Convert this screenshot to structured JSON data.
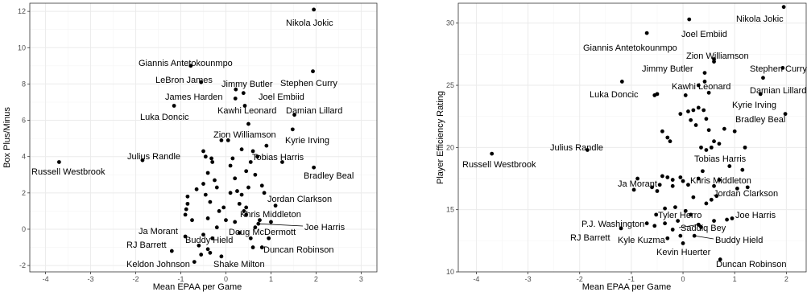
{
  "colors": {
    "panel_border": "#333333",
    "grid_major": "#ebebeb",
    "grid_minor": "#f5f5f5",
    "point": "#000000",
    "leader": "#000000"
  },
  "chart_data": [
    {
      "type": "scatter",
      "xlabel": "Mean EPAA per Game",
      "ylabel": "Box Plus/Minus",
      "xlim": [
        -4.35,
        3.35
      ],
      "ylim": [
        -2.35,
        12.45
      ],
      "xticks": [
        -4,
        -3,
        -2,
        -1,
        0,
        1,
        2,
        3
      ],
      "yticks": [
        -2,
        0,
        2,
        4,
        6,
        8,
        10,
        12
      ],
      "grid": true,
      "labeled": [
        {
          "name": "Nikola Jokic",
          "x": 1.95,
          "y": 12.1
        },
        {
          "name": "Giannis Antetokounmpo",
          "x": -0.78,
          "y": 9.0
        },
        {
          "name": "LeBron James",
          "x": -0.55,
          "y": 8.1
        },
        {
          "name": "Stephen Curry",
          "x": 1.93,
          "y": 8.7
        },
        {
          "name": "Jimmy Butler",
          "x": 0.22,
          "y": 7.7
        },
        {
          "name": "James Harden",
          "x": 0.21,
          "y": 7.2
        },
        {
          "name": "Joel Embiid",
          "x": 0.39,
          "y": 7.5
        },
        {
          "name": "Damian Lillard",
          "x": 1.52,
          "y": 6.3
        },
        {
          "name": "Kawhi Leonard",
          "x": 0.42,
          "y": 6.8
        },
        {
          "name": "Luka Doncic",
          "x": -1.15,
          "y": 6.8
        },
        {
          "name": "Zion Williamson",
          "x": 0.5,
          "y": 5.8
        },
        {
          "name": "Kyrie Irving",
          "x": 1.48,
          "y": 5.5
        },
        {
          "name": "Tobias Harris",
          "x": 0.35,
          "y": 4.4
        },
        {
          "name": "Julius Randle",
          "x": -1.85,
          "y": 3.8
        },
        {
          "name": "Russell Westbrook",
          "x": -3.7,
          "y": 3.7
        },
        {
          "name": "Bradley Beal",
          "x": 1.95,
          "y": 3.4
        },
        {
          "name": "Jordan Clarkson",
          "x": 1.1,
          "y": 1.3
        },
        {
          "name": "Khris Middleton",
          "x": 0.45,
          "y": 1.2
        },
        {
          "name": "Joe Harris",
          "x": 0.72,
          "y": 0.3
        },
        {
          "name": "Doug McDermott",
          "x": 0.65,
          "y": 0.1
        },
        {
          "name": "Ja Morant",
          "x": -0.9,
          "y": -0.4
        },
        {
          "name": "Buddy Hield",
          "x": -0.3,
          "y": -0.5
        },
        {
          "name": "RJ Barrett",
          "x": -1.2,
          "y": -1.2
        },
        {
          "name": "Duncan Robinson",
          "x": 0.8,
          "y": -1.0
        },
        {
          "name": "Keldon Johnson",
          "x": -0.7,
          "y": -1.8
        },
        {
          "name": "Shake Milton",
          "x": -0.1,
          "y": -1.5
        }
      ],
      "points": [
        [
          -0.85,
          1.8
        ],
        [
          -0.85,
          1.4
        ],
        [
          -0.88,
          1.1
        ],
        [
          -0.9,
          0.8
        ],
        [
          -0.75,
          0.5
        ],
        [
          -0.65,
          2.2
        ],
        [
          -0.5,
          4.3
        ],
        [
          -0.45,
          4.0
        ],
        [
          -0.4,
          3.1
        ],
        [
          -0.32,
          3.9
        ],
        [
          -0.3,
          3.7
        ],
        [
          -0.25,
          2.7
        ],
        [
          -0.2,
          2.3
        ],
        [
          -0.45,
          1.9
        ],
        [
          -0.5,
          2.5
        ],
        [
          -0.35,
          1.5
        ],
        [
          -0.1,
          4.9
        ],
        [
          -0.05,
          1.2
        ],
        [
          0.05,
          4.9
        ],
        [
          0.1,
          3.5
        ],
        [
          0.15,
          3.9
        ],
        [
          0.2,
          2.8
        ],
        [
          0.25,
          2.1
        ],
        [
          0.3,
          1.4
        ],
        [
          0.35,
          1.9
        ],
        [
          0.4,
          1.0
        ],
        [
          0.45,
          3.2
        ],
        [
          0.5,
          2.3
        ],
        [
          0.55,
          3.7
        ],
        [
          0.6,
          4.3
        ],
        [
          0.65,
          3.0
        ],
        [
          0.7,
          4.0
        ],
        [
          0.75,
          0.5
        ],
        [
          0.8,
          2.4
        ],
        [
          0.85,
          2.0
        ],
        [
          0.9,
          4.6
        ],
        [
          0.0,
          0.5
        ],
        [
          -0.2,
          0.1
        ],
        [
          -0.4,
          0.6
        ],
        [
          -0.5,
          -0.3
        ],
        [
          -0.6,
          -0.9
        ],
        [
          -0.55,
          -1.4
        ],
        [
          -0.4,
          -1.1
        ],
        [
          -0.35,
          -1.3
        ],
        [
          0.2,
          0.4
        ],
        [
          0.3,
          -0.2
        ],
        [
          0.55,
          -0.5
        ],
        [
          0.6,
          -1.0
        ],
        [
          0.95,
          -0.5
        ],
        [
          1.0,
          0.4
        ],
        [
          1.25,
          3.7
        ],
        [
          0.1,
          2.0
        ],
        [
          -0.15,
          1.0
        ],
        [
          0.45,
          0.8
        ]
      ]
    },
    {
      "type": "scatter",
      "xlabel": "Mean EPAA per Game",
      "ylabel": "Player Efficiency Rating",
      "xlim": [
        -4.35,
        2.4
      ],
      "ylim": [
        10.0,
        31.6
      ],
      "xticks": [
        -4,
        -3,
        -2,
        -1,
        0,
        1,
        2
      ],
      "yticks": [
        10,
        15,
        20,
        25,
        30
      ],
      "grid": true,
      "labeled": [
        {
          "name": "Nikola Jokic",
          "x": 1.95,
          "y": 31.3
        },
        {
          "name": "Joel Embiid",
          "x": 0.12,
          "y": 30.3
        },
        {
          "name": "Giannis Antetokounmpo",
          "x": -0.7,
          "y": 29.2
        },
        {
          "name": "Zion Williamson",
          "x": 0.6,
          "y": 27.1
        },
        {
          "name": "Jimmy Butler",
          "x": 0.42,
          "y": 26.0
        },
        {
          "name": "Stephen Curry",
          "x": 1.93,
          "y": 26.4
        },
        {
          "name": "Kawhi Leonard",
          "x": 0.42,
          "y": 25.3
        },
        {
          "name": "Damian Lillard",
          "x": 1.55,
          "y": 25.6
        },
        {
          "name": "Luka Doncic",
          "x": -1.18,
          "y": 25.3
        },
        {
          "name": "Kyrie Irving",
          "x": 1.5,
          "y": 24.3
        },
        {
          "name": "Bradley Beal",
          "x": 1.98,
          "y": 22.7
        },
        {
          "name": "Julius Randle",
          "x": -1.85,
          "y": 19.8
        },
        {
          "name": "Tobias Harris",
          "x": 0.35,
          "y": 20.0
        },
        {
          "name": "Russell Westbrook",
          "x": -3.7,
          "y": 19.5
        },
        {
          "name": "Khris Middleton",
          "x": 0.38,
          "y": 18.1
        },
        {
          "name": "Ja Morant",
          "x": -0.88,
          "y": 17.5
        },
        {
          "name": "Jordan Clarkson",
          "x": 1.05,
          "y": 16.7
        },
        {
          "name": "Joe Harris",
          "x": 0.95,
          "y": 14.3
        },
        {
          "name": "Tyler Herro",
          "x": -0.52,
          "y": 14.6
        },
        {
          "name": "P.J. Washington",
          "x": -0.7,
          "y": 13.9
        },
        {
          "name": "Saddiq Bey",
          "x": 0.3,
          "y": 13.8
        },
        {
          "name": "RJ Barrett",
          "x": -1.2,
          "y": 13.5
        },
        {
          "name": "Kyle Kuzma",
          "x": -0.3,
          "y": 12.7
        },
        {
          "name": "Buddy Hield",
          "x": 0.22,
          "y": 12.9
        },
        {
          "name": "Kevin Huerter",
          "x": 0.0,
          "y": 12.3
        },
        {
          "name": "Duncan Robinson",
          "x": 0.72,
          "y": 11.0
        }
      ],
      "points": [
        [
          -0.55,
          24.2
        ],
        [
          -0.5,
          24.3
        ],
        [
          0.5,
          24.4
        ],
        [
          -0.05,
          22.7
        ],
        [
          0.1,
          22.9
        ],
        [
          0.2,
          23.0
        ],
        [
          0.3,
          23.2
        ],
        [
          0.4,
          23.0
        ],
        [
          0.15,
          22.2
        ],
        [
          0.25,
          21.8
        ],
        [
          0.45,
          22.3
        ],
        [
          0.8,
          21.5
        ],
        [
          -0.4,
          21.3
        ],
        [
          -0.3,
          20.8
        ],
        [
          -0.25,
          20.5
        ],
        [
          0.6,
          20.5
        ],
        [
          0.7,
          20.3
        ],
        [
          0.55,
          20.0
        ],
        [
          0.45,
          19.8
        ],
        [
          1.2,
          20.0
        ],
        [
          1.0,
          21.3
        ],
        [
          -0.4,
          17.7
        ],
        [
          -0.3,
          17.6
        ],
        [
          -0.2,
          17.4
        ],
        [
          -0.05,
          17.6
        ],
        [
          0.0,
          17.3
        ],
        [
          0.1,
          17.0
        ],
        [
          0.3,
          17.5
        ],
        [
          0.6,
          16.9
        ],
        [
          0.7,
          17.4
        ],
        [
          1.15,
          18.2
        ],
        [
          0.9,
          18.5
        ],
        [
          -0.6,
          16.8
        ],
        [
          -0.5,
          16.5
        ],
        [
          -0.45,
          17.0
        ],
        [
          -0.2,
          16.9
        ],
        [
          0.45,
          15.5
        ],
        [
          0.55,
          15.8
        ],
        [
          0.65,
          16.1
        ],
        [
          0.2,
          16.0
        ],
        [
          -0.35,
          15.1
        ],
        [
          -0.15,
          15.2
        ],
        [
          0.05,
          14.9
        ],
        [
          0.15,
          14.6
        ],
        [
          0.6,
          14.1
        ],
        [
          0.85,
          14.2
        ],
        [
          -0.1,
          14.1
        ],
        [
          -0.35,
          13.9
        ],
        [
          -0.2,
          13.4
        ],
        [
          -0.55,
          13.7
        ],
        [
          -0.95,
          16.6
        ],
        [
          0.35,
          13.6
        ],
        [
          0.5,
          21.4
        ],
        [
          0.05,
          24.2
        ],
        [
          0.3,
          25.0
        ],
        [
          0.6,
          26.9
        ],
        [
          -0.05,
          12.9
        ],
        [
          1.25,
          16.8
        ]
      ]
    }
  ]
}
